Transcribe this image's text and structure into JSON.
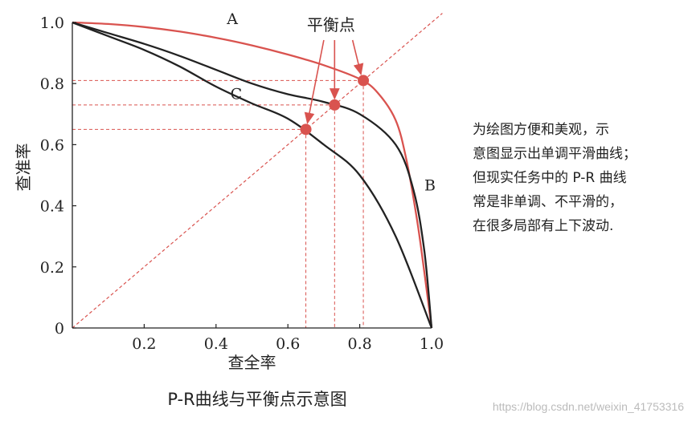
{
  "chart_data": {
    "type": "line",
    "title": "P-R曲线与平衡点示意图",
    "xlabel": "查全率",
    "ylabel": "查准率",
    "xlim": [
      0,
      1
    ],
    "ylim": [
      0,
      1
    ],
    "x_ticks": [
      "0",
      "0.2",
      "0.4",
      "0.6",
      "0.8",
      "1.0"
    ],
    "y_ticks": [
      "0",
      "0.2",
      "0.4",
      "0.6",
      "0.8",
      "1.0"
    ],
    "grid": false,
    "series": [
      {
        "name": "A",
        "color": "#d9534f",
        "points": [
          [
            0,
            1.0
          ],
          [
            0.1,
            0.995
          ],
          [
            0.2,
            0.985
          ],
          [
            0.3,
            0.97
          ],
          [
            0.4,
            0.95
          ],
          [
            0.5,
            0.925
          ],
          [
            0.6,
            0.895
          ],
          [
            0.7,
            0.86
          ],
          [
            0.8,
            0.815
          ],
          [
            0.85,
            0.77
          ],
          [
            0.9,
            0.68
          ],
          [
            0.93,
            0.55
          ],
          [
            0.96,
            0.35
          ],
          [
            0.98,
            0.18
          ],
          [
            1.0,
            0.0
          ]
        ]
      },
      {
        "name": "B",
        "color": "#222222",
        "points": [
          [
            0,
            1.0
          ],
          [
            0.1,
            0.965
          ],
          [
            0.2,
            0.93
          ],
          [
            0.3,
            0.89
          ],
          [
            0.4,
            0.845
          ],
          [
            0.5,
            0.8
          ],
          [
            0.6,
            0.765
          ],
          [
            0.7,
            0.74
          ],
          [
            0.8,
            0.7
          ],
          [
            0.9,
            0.6
          ],
          [
            0.95,
            0.45
          ],
          [
            0.98,
            0.25
          ],
          [
            1.0,
            0.0
          ]
        ]
      },
      {
        "name": "C",
        "color": "#222222",
        "points": [
          [
            0,
            1.0
          ],
          [
            0.1,
            0.955
          ],
          [
            0.2,
            0.91
          ],
          [
            0.3,
            0.855
          ],
          [
            0.4,
            0.79
          ],
          [
            0.5,
            0.735
          ],
          [
            0.6,
            0.685
          ],
          [
            0.7,
            0.6
          ],
          [
            0.8,
            0.5
          ],
          [
            0.9,
            0.3
          ],
          [
            1.0,
            0.0
          ]
        ]
      }
    ],
    "diagonal": {
      "points": [
        [
          0,
          0
        ],
        [
          1,
          1
        ]
      ],
      "color": "#d9534f",
      "style": "dashed"
    },
    "break_even_points": [
      {
        "x": 0.65,
        "y": 0.65
      },
      {
        "x": 0.73,
        "y": 0.73
      },
      {
        "x": 0.81,
        "y": 0.81
      }
    ],
    "annotation": "平衡点"
  },
  "note_lines": [
    "为绘图方便和美观，示",
    "意图显示出单调平滑曲线；",
    "但现实任务中的 P-R 曲线",
    "常是非单调、不平滑的，",
    "在很多局部有上下波动."
  ],
  "caption": "P-R曲线与平衡点示意图",
  "watermark": "https://blog.csdn.net/weixin_41753316"
}
